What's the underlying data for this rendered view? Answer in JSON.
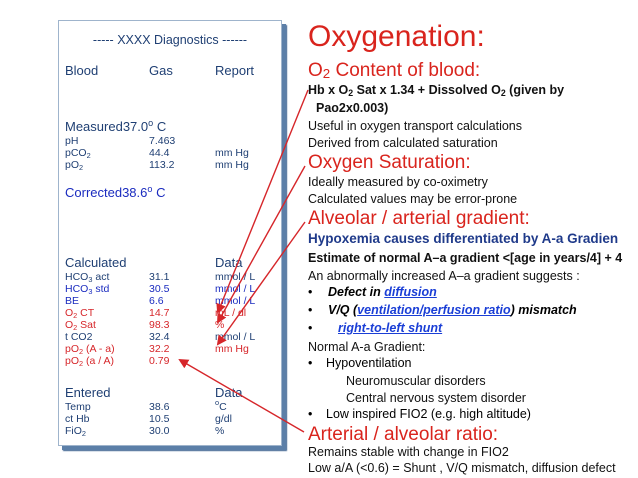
{
  "report": {
    "title": "XXXX Diagnostics",
    "col_headers": [
      "Blood",
      "Gas",
      "Report"
    ],
    "measured_label": "Measured",
    "measured_temp": "37.0",
    "temp_unit": "C",
    "measured_rows": [
      {
        "name": "pH",
        "value": "7.463",
        "unit": ""
      },
      {
        "name": "pCO2",
        "value": "44.4",
        "unit": "mm Hg"
      },
      {
        "name": "pO2",
        "value": "113.2",
        "unit": "mm Hg"
      }
    ],
    "corrected_label": "Corrected",
    "corrected_temp": "38.6",
    "calculated_label": "Calculated",
    "data_label": "Data",
    "calculated_rows": [
      {
        "name": "HCO3 act",
        "value": "31.1",
        "unit": "mmol / L"
      },
      {
        "name": "HCO3 std",
        "value": "30.5",
        "unit": "mmol / L"
      },
      {
        "name": "BE",
        "value": "6.6",
        "unit": "mmol / L"
      },
      {
        "name": "O2 CT",
        "value": "14.7",
        "unit": "mL / dl"
      },
      {
        "name": "O2 Sat",
        "value": "98.3",
        "unit": "%"
      },
      {
        "name": "t CO2",
        "value": "32.4",
        "unit": "mmol / L"
      },
      {
        "name": "pO2 (A - a)",
        "value": "32.2",
        "unit": "mm Hg"
      },
      {
        "name": "pO2 (a / A)",
        "value": "0.79",
        "unit": ""
      }
    ],
    "entered_label": "Entered",
    "entered_rows": [
      {
        "name": "Temp",
        "value": "38.6",
        "unit": "oC"
      },
      {
        "name": "ct Hb",
        "value": "10.5",
        "unit": "g/dl"
      },
      {
        "name": "FiO2",
        "value": "30.0",
        "unit": "%"
      }
    ]
  },
  "notes": {
    "title": "Oxygenation:",
    "o2_content_head": "O2 Content of blood:",
    "o2_content_formula_1": "Hb x O2 Sat x 1.34 + Dissolved O2 (given by",
    "o2_content_formula_2": "Pao2x0.003)",
    "o2_content_line1": "Useful in oxygen transport calculations",
    "o2_content_line2": "Derived from calculated saturation",
    "sat_head": "Oxygen Saturation:",
    "sat_line1": "Ideally measured by co-oximetry",
    "sat_line2": "Calculated values may be error-prone",
    "grad_head": "Alveolar / arterial gradient:",
    "grad_sub": "Hypoxemia causes differentiated by A-a Gradien",
    "grad_estimate": "Estimate of normal A–a gradient <[age in years/4] + 4",
    "grad_increase": "An abnormally increased A–a gradient suggests :",
    "bullet_1": "Defect in diffusion",
    "bullet_2_pre": "V/Q (",
    "bullet_2_link": "ventilation/perfusion ratio",
    "bullet_2_post": ") mismatch",
    "bullet_3": "right-to-left shunt",
    "normal_head": "Normal A-a Gradient:",
    "hypovent": "Hypoventilation",
    "neuro": "Neuromuscular disorders",
    "cns": "Central nervous system disorder",
    "low_fio2": "Low inspired FIO2 (e.g. high altitude)",
    "ratio_head": "Arterial / alveolar ratio:",
    "ratio_line1": "Remains stable with change in FIO2",
    "ratio_line2": "Low  a/A (<0.6) = Shunt , V/Q mismatch, diffusion defect"
  },
  "colors": {
    "heading_red": "#d9241d",
    "report_blue": "#1f3f73",
    "link_blue": "#1a3ed6",
    "arrow_red": "#d6262a"
  }
}
